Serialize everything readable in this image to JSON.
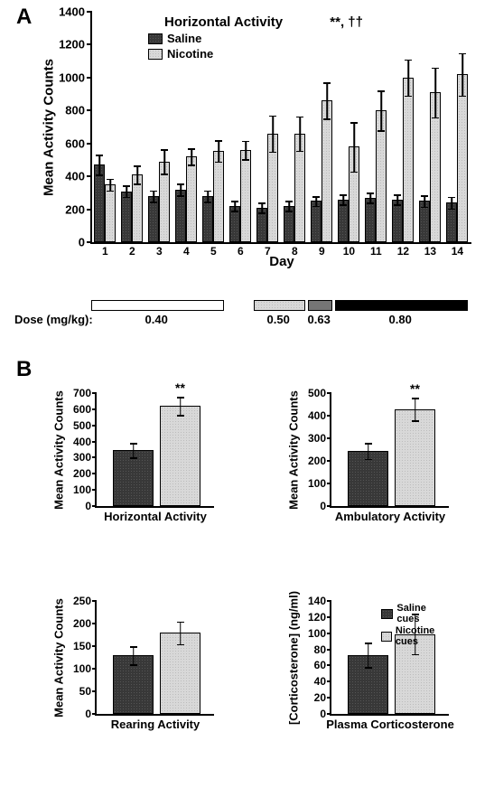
{
  "panelA": {
    "label": "A",
    "title": "Horizontal Activity",
    "significance": "**, ††",
    "ylabel": "Mean Activity Counts",
    "xlabel": "Day",
    "ylim": [
      0,
      1400
    ],
    "ytick_step": 200,
    "yticks": [
      0,
      200,
      400,
      600,
      800,
      1000,
      1200,
      1400
    ],
    "legend": [
      {
        "label": "Saline",
        "fill": "fill-dark"
      },
      {
        "label": "Nicotine",
        "fill": "fill-light"
      }
    ],
    "days": [
      1,
      2,
      3,
      4,
      5,
      6,
      7,
      8,
      9,
      10,
      11,
      12,
      13,
      14
    ],
    "saline": {
      "values": [
        470,
        310,
        280,
        320,
        280,
        220,
        210,
        220,
        250,
        260,
        270,
        260,
        250,
        240
      ],
      "errors": [
        60,
        35,
        35,
        35,
        35,
        30,
        30,
        30,
        30,
        30,
        30,
        30,
        35,
        35
      ],
      "fill": "fill-dark"
    },
    "nicotine": {
      "values": [
        0,
        350,
        410,
        490,
        520,
        555,
        560,
        660,
        660,
        860,
        580,
        800,
        1000,
        910,
        1020
      ],
      "__comment": "index 0 unused",
      "errors": [
        0,
        35,
        55,
        75,
        50,
        65,
        55,
        110,
        105,
        110,
        150,
        120,
        110,
        150,
        130
      ],
      "fill": "fill-light"
    },
    "nicotine_values": [
      350,
      410,
      490,
      520,
      555,
      560,
      660,
      660,
      860,
      580,
      800,
      1000,
      910,
      1020
    ],
    "nicotine_errors": [
      35,
      55,
      75,
      50,
      65,
      55,
      110,
      105,
      110,
      150,
      120,
      110,
      150,
      130
    ],
    "dose_prefix": "Dose (mg/kg):",
    "doses": [
      {
        "label": "0.40",
        "days": [
          1,
          5
        ],
        "fill": "fill-white"
      },
      {
        "label": "0.50",
        "days": [
          7,
          8
        ],
        "fill": "fill-light"
      },
      {
        "label": "0.63",
        "days": [
          9,
          9
        ],
        "fill": "fill-mid"
      },
      {
        "label": "0.80",
        "days": [
          10,
          14
        ],
        "fill": "fill-black"
      }
    ]
  },
  "panelB": {
    "label": "B",
    "charts": [
      {
        "id": "horiz",
        "title": "Horizontal Activity",
        "ylabel": "Mean Activity Counts",
        "ylim": [
          0,
          700
        ],
        "yticks": [
          0,
          100,
          200,
          300,
          400,
          500,
          600,
          700
        ],
        "bars": [
          {
            "value": 345,
            "error": 45,
            "fill": "fill-dark"
          },
          {
            "value": 620,
            "error": 55,
            "fill": "fill-light"
          }
        ],
        "sig": "**",
        "sig_on": 1
      },
      {
        "id": "ambul",
        "title": "Ambulatory Activity",
        "ylabel": "Mean Activity Counts",
        "ylim": [
          0,
          500
        ],
        "yticks": [
          0,
          100,
          200,
          300,
          400,
          500
        ],
        "bars": [
          {
            "value": 245,
            "error": 35,
            "fill": "fill-dark"
          },
          {
            "value": 430,
            "error": 50,
            "fill": "fill-light"
          }
        ],
        "sig": "**",
        "sig_on": 1
      },
      {
        "id": "rear",
        "title": "Rearing Activity",
        "ylabel": "Mean Activity Counts",
        "ylim": [
          0,
          250
        ],
        "yticks": [
          0,
          50,
          100,
          150,
          200,
          250
        ],
        "bars": [
          {
            "value": 130,
            "error": 20,
            "fill": "fill-dark"
          },
          {
            "value": 180,
            "error": 25,
            "fill": "fill-light"
          }
        ]
      },
      {
        "id": "cort",
        "title": "Plasma Corticosterone",
        "ylabel": "[Corticosterone] (ng/ml)",
        "ylim": [
          0,
          140
        ],
        "yticks": [
          0,
          20,
          40,
          60,
          80,
          100,
          120,
          140
        ],
        "bars": [
          {
            "value": 73,
            "error": 15,
            "fill": "fill-dark"
          },
          {
            "value": 99,
            "error": 25,
            "fill": "fill-light"
          }
        ],
        "legend": [
          {
            "label": "Saline cues",
            "fill": "fill-dark"
          },
          {
            "label": "Nicotine cues",
            "fill": "fill-light"
          }
        ]
      }
    ]
  },
  "colors": {
    "dark": "#383838",
    "light": "#d8d8d8",
    "mid": "#757575",
    "black": "#000000",
    "white": "#ffffff",
    "axis": "#000000",
    "background": "#ffffff"
  },
  "typography": {
    "font_family": "Arial",
    "axis_label_pt": 15,
    "tick_pt": 12,
    "panel_label_pt": 24
  }
}
